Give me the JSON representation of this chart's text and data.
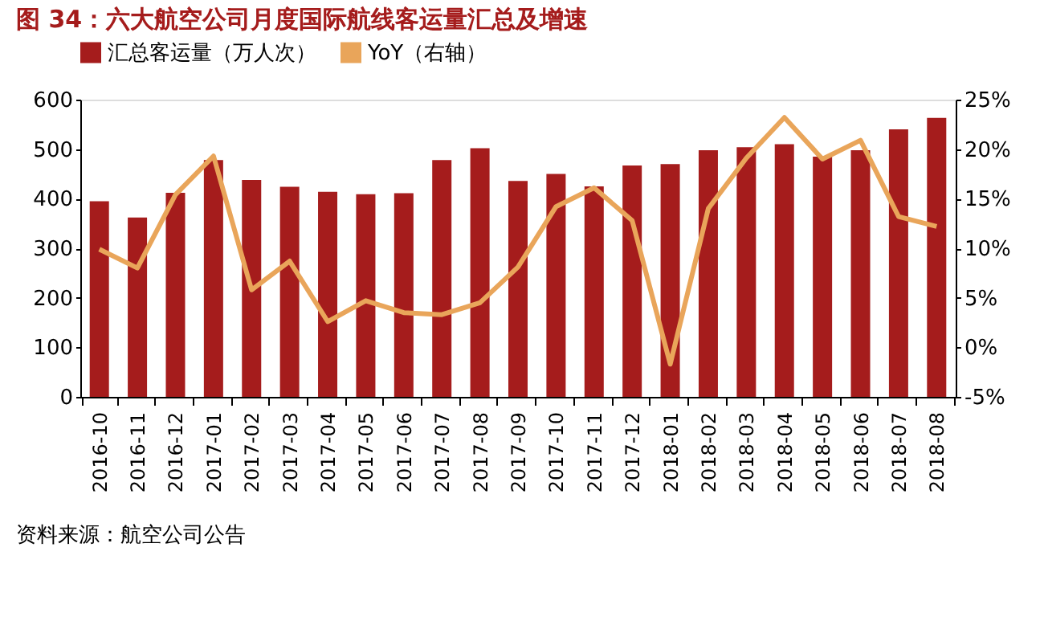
{
  "chart_data": {
    "type": "bar",
    "title": "图 34：六大航空公司月度国际航线客运量汇总及增速",
    "categories": [
      "2016-10",
      "2016-11",
      "2016-12",
      "2017-01",
      "2017-02",
      "2017-03",
      "2017-04",
      "2017-05",
      "2017-06",
      "2017-07",
      "2017-08",
      "2017-09",
      "2017-10",
      "2017-11",
      "2017-12",
      "2018-01",
      "2018-02",
      "2018-03",
      "2018-04",
      "2018-05",
      "2018-06",
      "2018-07",
      "2018-08"
    ],
    "series": [
      {
        "name": "汇总客运量（万人次）",
        "color": "#a51c1c",
        "values": [
          395,
          362,
          412,
          478,
          438,
          424,
          414,
          409,
          411,
          478,
          502,
          436,
          450,
          425,
          467,
          470,
          498,
          504,
          510,
          485,
          498,
          540,
          563
        ]
      },
      {
        "name": "YoY（右轴）",
        "color": "#e9a55a",
        "type": "line",
        "axis": "y2",
        "values": [
          9.9,
          8.0,
          15.4,
          19.3,
          5.8,
          8.7,
          2.6,
          4.7,
          3.5,
          3.3,
          4.5,
          8.1,
          14.2,
          16.1,
          12.8,
          -1.7,
          14.0,
          19.1,
          23.2,
          19.0,
          20.9,
          13.2,
          12.2
        ]
      }
    ],
    "ylim": [
      0,
      600
    ],
    "yticks": [
      0,
      100,
      200,
      300,
      400,
      500,
      600
    ],
    "y2lim": [
      -5,
      25
    ],
    "y2ticks": [
      {
        "value": -5,
        "label": "-5%"
      },
      {
        "value": 0,
        "label": "0%"
      },
      {
        "value": 5,
        "label": "5%"
      },
      {
        "value": 10,
        "label": "10%"
      },
      {
        "value": 15,
        "label": "15%"
      },
      {
        "value": 20,
        "label": "20%"
      },
      {
        "value": 25,
        "label": "25%"
      }
    ],
    "legend": "top",
    "grid": false,
    "annotations": [
      "资料来源：航空公司公告"
    ]
  }
}
